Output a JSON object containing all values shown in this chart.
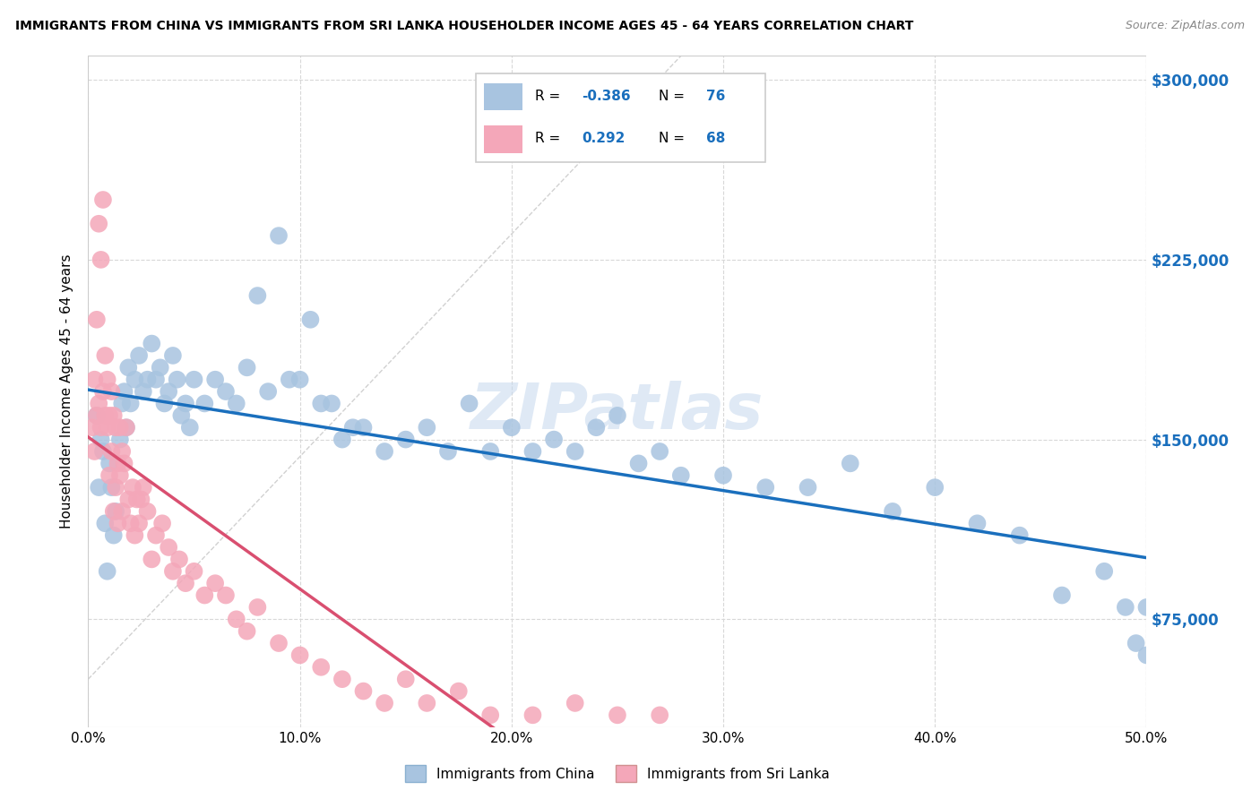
{
  "title": "IMMIGRANTS FROM CHINA VS IMMIGRANTS FROM SRI LANKA HOUSEHOLDER INCOME AGES 45 - 64 YEARS CORRELATION CHART",
  "source": "Source: ZipAtlas.com",
  "ylabel": "Householder Income Ages 45 - 64 years",
  "xlim": [
    0.0,
    0.5
  ],
  "ylim": [
    30000,
    310000
  ],
  "yticks": [
    75000,
    150000,
    225000,
    300000
  ],
  "ytick_labels": [
    "$75,000",
    "$150,000",
    "$225,000",
    "$300,000"
  ],
  "xticks": [
    0.0,
    0.1,
    0.2,
    0.3,
    0.4,
    0.5
  ],
  "xtick_labels": [
    "0.0%",
    "10.0%",
    "20.0%",
    "30.0%",
    "40.0%",
    "50.0%"
  ],
  "china_R": -0.386,
  "china_N": 76,
  "srilanka_R": 0.292,
  "srilanka_N": 68,
  "china_color": "#a8c4e0",
  "srilanka_color": "#f4a7b9",
  "china_line_color": "#1a6fbd",
  "srilanka_line_color": "#d94f70",
  "watermark": "ZIPatlas",
  "legend_china_R": "-0.386",
  "legend_china_N": "76",
  "legend_sl_R": "0.292",
  "legend_sl_N": "68",
  "china_x": [
    0.004,
    0.005,
    0.006,
    0.007,
    0.008,
    0.009,
    0.01,
    0.011,
    0.012,
    0.013,
    0.015,
    0.016,
    0.017,
    0.018,
    0.019,
    0.02,
    0.022,
    0.024,
    0.026,
    0.028,
    0.03,
    0.032,
    0.034,
    0.036,
    0.038,
    0.04,
    0.042,
    0.044,
    0.046,
    0.048,
    0.05,
    0.055,
    0.06,
    0.065,
    0.07,
    0.075,
    0.08,
    0.085,
    0.09,
    0.095,
    0.1,
    0.105,
    0.11,
    0.115,
    0.12,
    0.125,
    0.13,
    0.14,
    0.15,
    0.16,
    0.17,
    0.18,
    0.19,
    0.2,
    0.21,
    0.22,
    0.23,
    0.24,
    0.25,
    0.26,
    0.27,
    0.28,
    0.3,
    0.32,
    0.34,
    0.36,
    0.38,
    0.4,
    0.42,
    0.44,
    0.46,
    0.48,
    0.49,
    0.495,
    0.5,
    0.5
  ],
  "china_y": [
    160000,
    130000,
    150000,
    145000,
    115000,
    95000,
    140000,
    130000,
    110000,
    120000,
    150000,
    165000,
    170000,
    155000,
    180000,
    165000,
    175000,
    185000,
    170000,
    175000,
    190000,
    175000,
    180000,
    165000,
    170000,
    185000,
    175000,
    160000,
    165000,
    155000,
    175000,
    165000,
    175000,
    170000,
    165000,
    180000,
    210000,
    170000,
    235000,
    175000,
    175000,
    200000,
    165000,
    165000,
    150000,
    155000,
    155000,
    145000,
    150000,
    155000,
    145000,
    165000,
    145000,
    155000,
    145000,
    150000,
    145000,
    155000,
    160000,
    140000,
    145000,
    135000,
    135000,
    130000,
    130000,
    140000,
    120000,
    130000,
    115000,
    110000,
    85000,
    95000,
    80000,
    65000,
    60000,
    80000
  ],
  "srilanka_x": [
    0.002,
    0.003,
    0.003,
    0.004,
    0.004,
    0.005,
    0.005,
    0.006,
    0.006,
    0.007,
    0.007,
    0.008,
    0.008,
    0.009,
    0.009,
    0.01,
    0.01,
    0.011,
    0.011,
    0.012,
    0.012,
    0.013,
    0.013,
    0.014,
    0.014,
    0.015,
    0.015,
    0.016,
    0.016,
    0.017,
    0.018,
    0.019,
    0.02,
    0.021,
    0.022,
    0.023,
    0.024,
    0.025,
    0.026,
    0.028,
    0.03,
    0.032,
    0.035,
    0.038,
    0.04,
    0.043,
    0.046,
    0.05,
    0.055,
    0.06,
    0.065,
    0.07,
    0.075,
    0.08,
    0.09,
    0.1,
    0.11,
    0.12,
    0.13,
    0.14,
    0.15,
    0.16,
    0.175,
    0.19,
    0.21,
    0.23,
    0.25,
    0.27
  ],
  "srilanka_y": [
    155000,
    145000,
    175000,
    160000,
    200000,
    165000,
    240000,
    155000,
    225000,
    170000,
    250000,
    160000,
    185000,
    175000,
    155000,
    160000,
    135000,
    170000,
    145000,
    160000,
    120000,
    155000,
    130000,
    140000,
    115000,
    155000,
    135000,
    145000,
    120000,
    140000,
    155000,
    125000,
    115000,
    130000,
    110000,
    125000,
    115000,
    125000,
    130000,
    120000,
    100000,
    110000,
    115000,
    105000,
    95000,
    100000,
    90000,
    95000,
    85000,
    90000,
    85000,
    75000,
    70000,
    80000,
    65000,
    60000,
    55000,
    50000,
    45000,
    40000,
    50000,
    40000,
    45000,
    35000,
    35000,
    40000,
    35000,
    35000
  ]
}
